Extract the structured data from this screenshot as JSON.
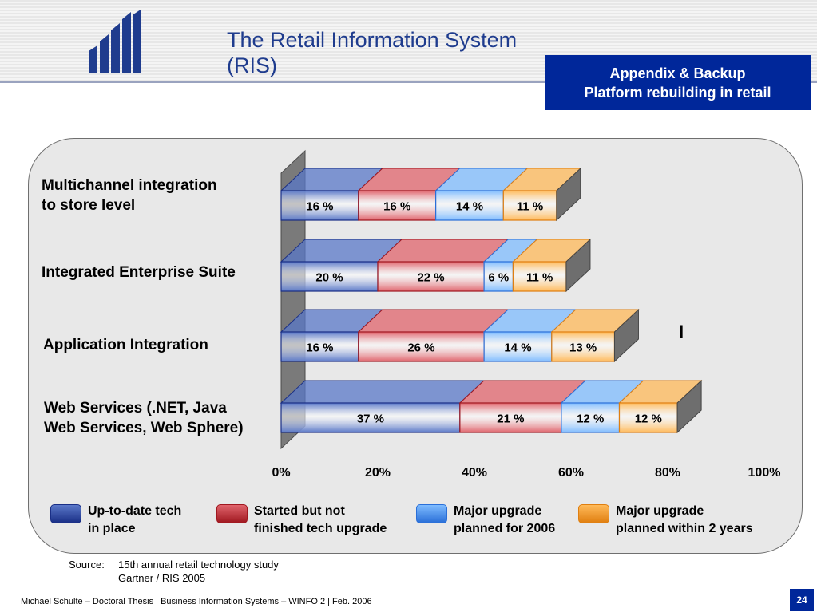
{
  "slide": {
    "title_line1": "The Retail Information System",
    "title_line2": "(RIS)",
    "appendix_line1": "Appendix & Backup",
    "appendix_line2": "Platform rebuilding in retail",
    "source_label": "Source:",
    "source_line1": "15th annual retail technology study",
    "source_line2": "Gartner / RIS 2005",
    "footer": "Michael Schulte – Doctoral Thesis | Business Information Systems – WINFO 2 | Feb. 2006",
    "page_number": "24",
    "stray_mark": "I"
  },
  "colors": {
    "brand_blue": "#00279a",
    "title_blue": "#1f3c8e",
    "panel_bg": "#e8e8e8"
  },
  "chart_data": {
    "type": "bar",
    "orientation": "horizontal",
    "stacked": true,
    "style": "3d",
    "categories": [
      {
        "line1": "Multichannel integration",
        "line2": "to store level"
      },
      {
        "line1": "Integrated Enterprise Suite",
        "line2": ""
      },
      {
        "line1": "Application Integration",
        "line2": ""
      },
      {
        "line1": "Web Services (.NET, Java",
        "line2": "Web Services, Web Sphere)"
      }
    ],
    "series": [
      {
        "name_line1": "Up-to-date tech",
        "name_line2": "in place",
        "color": "#5a78c8",
        "edge": "#1a2f86",
        "values": [
          16,
          20,
          16,
          37
        ],
        "labels": [
          "16 %",
          "20 %",
          "16 %",
          "37 %"
        ]
      },
      {
        "name_line1": "Started but not",
        "name_line2": "finished tech upgrade",
        "color": "#e0646c",
        "edge": "#a01820",
        "values": [
          16,
          22,
          26,
          21
        ],
        "labels": [
          "16 %",
          "22 %",
          "26 %",
          "21 %"
        ]
      },
      {
        "name_line1": "Major upgrade",
        "name_line2": "planned for 2006",
        "color": "#7fbcff",
        "edge": "#2a6fd8",
        "values": [
          14,
          6,
          14,
          12
        ],
        "labels": [
          "14 %",
          "6 %",
          "14 %",
          "12 %"
        ]
      },
      {
        "name_line1": "Major upgrade",
        "name_line2": "planned within 2 years",
        "color": "#ffba5a",
        "edge": "#e07f10",
        "values": [
          11,
          11,
          13,
          12
        ],
        "labels": [
          "11 %",
          "11 %",
          "13 %",
          "12 %"
        ]
      }
    ],
    "xlim": [
      0,
      100
    ],
    "x_ticks": [
      "0%",
      "20%",
      "40%",
      "60%",
      "80%",
      "100%"
    ],
    "legend_position": "bottom",
    "grid": false
  }
}
